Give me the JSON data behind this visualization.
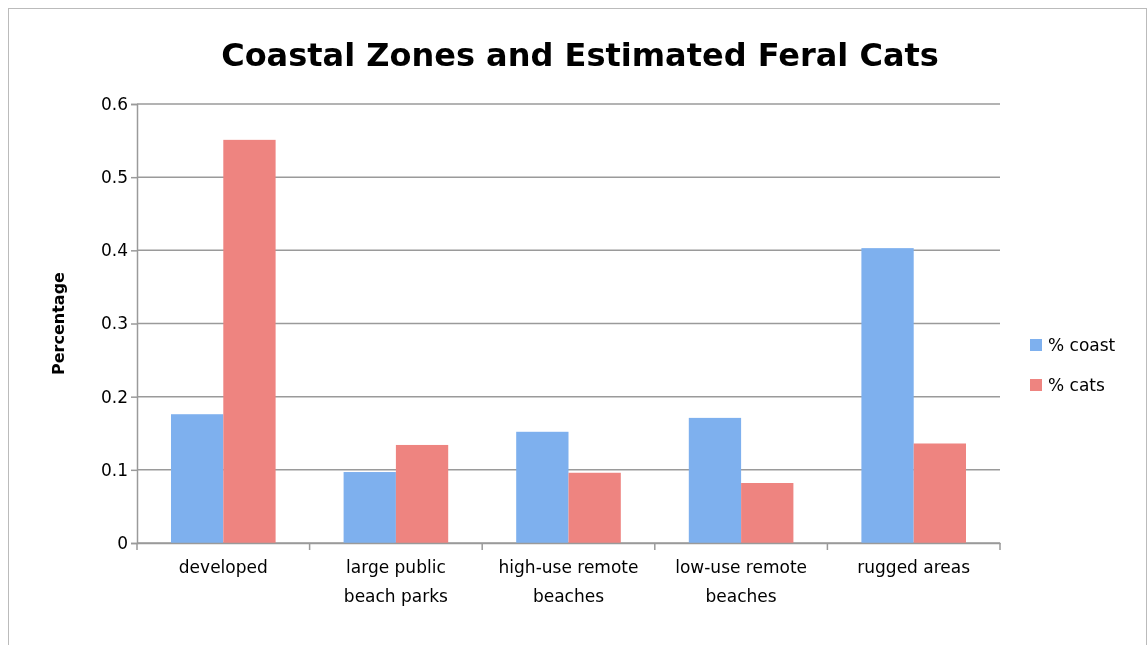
{
  "chart_data": {
    "type": "bar",
    "title": "Coastal Zones and Estimated Feral Cats",
    "ylabel": "Percentage",
    "categories": [
      "developed",
      "large public beach parks",
      "high-use remote beaches",
      "low-use remote beaches",
      "rugged areas"
    ],
    "series": [
      {
        "name": "% coast",
        "color": "#7eb0ee",
        "values": [
          0.176,
          0.097,
          0.152,
          0.171,
          0.403
        ]
      },
      {
        "name": "% cats",
        "color": "#ee8480",
        "values": [
          0.551,
          0.134,
          0.096,
          0.082,
          0.136
        ]
      }
    ],
    "ylim": [
      0,
      0.6
    ],
    "yticks": [
      0,
      0.1,
      0.2,
      0.3,
      0.4,
      0.5,
      0.6
    ],
    "grid": "y",
    "legend": "right"
  }
}
